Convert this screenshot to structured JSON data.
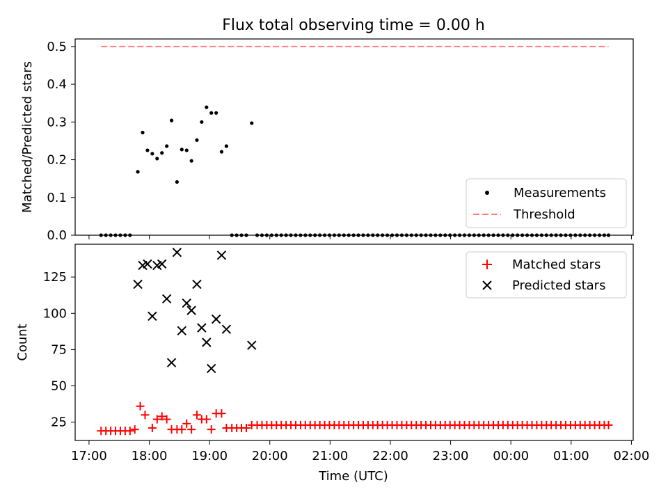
{
  "chart_data": [
    {
      "type": "scatter",
      "title": "Flux total observing time = 0.00 h",
      "xlabel": "",
      "ylabel": "Matched/Predicted stars",
      "x_unit": "hours since 17:00 UTC",
      "xlim": [
        16.77,
        26.03
      ],
      "ylim": [
        0,
        0.52
      ],
      "yticks": [
        "0.0",
        "0.1",
        "0.2",
        "0.3",
        "0.4",
        "0.5"
      ],
      "ytick_values": [
        0,
        0.1,
        0.2,
        0.3,
        0.4,
        0.5
      ],
      "legend_position": "lower right",
      "series": [
        {
          "name": "Measurements",
          "marker": "dot",
          "color": "#000000",
          "points": [
            [
              17.2,
              0
            ],
            [
              17.28,
              0
            ],
            [
              17.36,
              0
            ],
            [
              17.44,
              0
            ],
            [
              17.52,
              0
            ],
            [
              17.6,
              0
            ],
            [
              17.68,
              0
            ],
            [
              17.81,
              0.168
            ],
            [
              17.89,
              0.272
            ],
            [
              17.97,
              0.225
            ],
            [
              18.05,
              0.216
            ],
            [
              18.13,
              0.203
            ],
            [
              18.21,
              0.218
            ],
            [
              18.29,
              0.236
            ],
            [
              18.37,
              0.304
            ],
            [
              18.46,
              0.141
            ],
            [
              18.54,
              0.227
            ],
            [
              18.62,
              0.225
            ],
            [
              18.7,
              0.197
            ],
            [
              18.79,
              0.252
            ],
            [
              18.87,
              0.3
            ],
            [
              18.95,
              0.339
            ],
            [
              19.03,
              0.324
            ],
            [
              19.11,
              0.324
            ],
            [
              19.2,
              0.221
            ],
            [
              19.28,
              0.236
            ],
            [
              19.7,
              0.297
            ],
            [
              19.37,
              0
            ],
            [
              19.45,
              0
            ],
            [
              19.53,
              0
            ],
            [
              19.61,
              0
            ],
            [
              19.79,
              0
            ],
            [
              19.87,
              0
            ],
            [
              19.95,
              0
            ],
            [
              20.03,
              0
            ],
            [
              20.11,
              0
            ],
            [
              20.19,
              0
            ],
            [
              20.27,
              0
            ],
            [
              20.35,
              0
            ],
            [
              20.43,
              0
            ],
            [
              20.51,
              0
            ],
            [
              20.59,
              0
            ],
            [
              20.67,
              0
            ],
            [
              20.75,
              0
            ],
            [
              20.83,
              0
            ],
            [
              20.91,
              0
            ],
            [
              20.99,
              0
            ],
            [
              21.07,
              0
            ],
            [
              21.15,
              0
            ],
            [
              21.23,
              0
            ],
            [
              21.31,
              0
            ],
            [
              21.39,
              0
            ],
            [
              21.47,
              0
            ],
            [
              21.55,
              0
            ],
            [
              21.63,
              0
            ],
            [
              21.71,
              0
            ],
            [
              21.79,
              0
            ],
            [
              21.87,
              0
            ],
            [
              21.95,
              0
            ],
            [
              22.03,
              0
            ],
            [
              22.11,
              0
            ],
            [
              22.19,
              0
            ],
            [
              22.27,
              0
            ],
            [
              22.35,
              0
            ],
            [
              22.43,
              0
            ],
            [
              22.51,
              0
            ],
            [
              22.59,
              0
            ],
            [
              22.67,
              0
            ],
            [
              22.75,
              0
            ],
            [
              22.83,
              0
            ],
            [
              22.91,
              0
            ],
            [
              22.99,
              0
            ],
            [
              23.07,
              0
            ],
            [
              23.15,
              0
            ],
            [
              23.23,
              0
            ],
            [
              23.31,
              0
            ],
            [
              23.39,
              0
            ],
            [
              23.47,
              0
            ],
            [
              23.55,
              0
            ],
            [
              23.63,
              0
            ],
            [
              23.71,
              0
            ],
            [
              23.79,
              0
            ],
            [
              23.87,
              0
            ],
            [
              23.95,
              0
            ],
            [
              24.03,
              0
            ],
            [
              24.11,
              0
            ],
            [
              24.19,
              0
            ],
            [
              24.27,
              0
            ],
            [
              24.35,
              0
            ],
            [
              24.43,
              0
            ],
            [
              24.51,
              0
            ],
            [
              24.59,
              0
            ],
            [
              24.67,
              0
            ],
            [
              24.75,
              0
            ],
            [
              24.83,
              0
            ],
            [
              24.91,
              0
            ],
            [
              24.99,
              0
            ],
            [
              25.07,
              0
            ],
            [
              25.15,
              0
            ],
            [
              25.23,
              0
            ],
            [
              25.31,
              0
            ],
            [
              25.39,
              0
            ],
            [
              25.47,
              0
            ],
            [
              25.55,
              0
            ],
            [
              25.62,
              0
            ]
          ]
        },
        {
          "name": "Threshold",
          "marker": "dashed-line",
          "color": "#ff7f7f",
          "x_range": [
            17.2,
            25.62
          ],
          "y": 0.5
        }
      ]
    },
    {
      "type": "scatter",
      "xlabel": "Time (UTC)",
      "ylabel": "Count",
      "x_unit": "hours since 17:00 UTC",
      "xlim": [
        16.77,
        26.03
      ],
      "ylim": [
        12.4,
        147.6
      ],
      "xticks": [
        "17:00",
        "18:00",
        "19:00",
        "20:00",
        "21:00",
        "22:00",
        "23:00",
        "00:00",
        "01:00",
        "02:00"
      ],
      "xtick_values": [
        17,
        18,
        19,
        20,
        21,
        22,
        23,
        24,
        25,
        26
      ],
      "yticks": [
        "25",
        "50",
        "75",
        "100",
        "125"
      ],
      "ytick_values": [
        25,
        50,
        75,
        100,
        125
      ],
      "legend_position": "upper right",
      "series": [
        {
          "name": "Matched stars",
          "marker": "plus",
          "color": "#ff0000",
          "points": [
            [
              17.2,
              19
            ],
            [
              17.28,
              19
            ],
            [
              17.36,
              19
            ],
            [
              17.44,
              19
            ],
            [
              17.52,
              19
            ],
            [
              17.6,
              19
            ],
            [
              17.68,
              19
            ],
            [
              17.76,
              20
            ],
            [
              17.85,
              36
            ],
            [
              17.93,
              30
            ],
            [
              18.05,
              21
            ],
            [
              18.13,
              27
            ],
            [
              18.21,
              29
            ],
            [
              18.29,
              27
            ],
            [
              18.37,
              20
            ],
            [
              18.46,
              20
            ],
            [
              18.54,
              20
            ],
            [
              18.62,
              24
            ],
            [
              18.7,
              20
            ],
            [
              18.79,
              30
            ],
            [
              18.87,
              27
            ],
            [
              18.95,
              27
            ],
            [
              19.03,
              20
            ],
            [
              19.11,
              31
            ],
            [
              19.2,
              31
            ],
            [
              19.28,
              21
            ],
            [
              19.37,
              21
            ],
            [
              19.45,
              21
            ],
            [
              19.53,
              21
            ],
            [
              19.61,
              21
            ],
            [
              19.7,
              23
            ],
            [
              19.79,
              23
            ],
            [
              19.87,
              23
            ],
            [
              19.95,
              23
            ],
            [
              20.03,
              23
            ],
            [
              20.11,
              23
            ],
            [
              20.19,
              23
            ],
            [
              20.27,
              23
            ],
            [
              20.35,
              23
            ],
            [
              20.43,
              23
            ],
            [
              20.51,
              23
            ],
            [
              20.59,
              23
            ],
            [
              20.67,
              23
            ],
            [
              20.75,
              23
            ],
            [
              20.83,
              23
            ],
            [
              20.91,
              23
            ],
            [
              20.99,
              23
            ],
            [
              21.07,
              23
            ],
            [
              21.15,
              23
            ],
            [
              21.23,
              23
            ],
            [
              21.31,
              23
            ],
            [
              21.39,
              23
            ],
            [
              21.47,
              23
            ],
            [
              21.55,
              23
            ],
            [
              21.63,
              23
            ],
            [
              21.71,
              23
            ],
            [
              21.79,
              23
            ],
            [
              21.87,
              23
            ],
            [
              21.95,
              23
            ],
            [
              22.03,
              23
            ],
            [
              22.11,
              23
            ],
            [
              22.19,
              23
            ],
            [
              22.27,
              23
            ],
            [
              22.35,
              23
            ],
            [
              22.43,
              23
            ],
            [
              22.51,
              23
            ],
            [
              22.59,
              23
            ],
            [
              22.67,
              23
            ],
            [
              22.75,
              23
            ],
            [
              22.83,
              23
            ],
            [
              22.91,
              23
            ],
            [
              22.99,
              23
            ],
            [
              23.07,
              23
            ],
            [
              23.15,
              23
            ],
            [
              23.23,
              23
            ],
            [
              23.31,
              23
            ],
            [
              23.39,
              23
            ],
            [
              23.47,
              23
            ],
            [
              23.55,
              23
            ],
            [
              23.63,
              23
            ],
            [
              23.71,
              23
            ],
            [
              23.79,
              23
            ],
            [
              23.87,
              23
            ],
            [
              23.95,
              23
            ],
            [
              24.03,
              23
            ],
            [
              24.11,
              23
            ],
            [
              24.19,
              23
            ],
            [
              24.27,
              23
            ],
            [
              24.35,
              23
            ],
            [
              24.43,
              23
            ],
            [
              24.51,
              23
            ],
            [
              24.59,
              23
            ],
            [
              24.67,
              23
            ],
            [
              24.75,
              23
            ],
            [
              24.83,
              23
            ],
            [
              24.91,
              23
            ],
            [
              24.99,
              23
            ],
            [
              25.07,
              23
            ],
            [
              25.15,
              23
            ],
            [
              25.23,
              23
            ],
            [
              25.31,
              23
            ],
            [
              25.39,
              23
            ],
            [
              25.47,
              23
            ],
            [
              25.55,
              23
            ],
            [
              25.62,
              23
            ]
          ]
        },
        {
          "name": "Predicted stars",
          "marker": "x",
          "color": "#000000",
          "points": [
            [
              17.81,
              120
            ],
            [
              17.89,
              133
            ],
            [
              17.97,
              134
            ],
            [
              18.05,
              98
            ],
            [
              18.13,
              133
            ],
            [
              18.21,
              134
            ],
            [
              18.29,
              110
            ],
            [
              18.37,
              66
            ],
            [
              18.46,
              142
            ],
            [
              18.54,
              88
            ],
            [
              18.62,
              107
            ],
            [
              18.7,
              102
            ],
            [
              18.79,
              120
            ],
            [
              18.87,
              90
            ],
            [
              18.95,
              80
            ],
            [
              19.03,
              62
            ],
            [
              19.11,
              96
            ],
            [
              19.2,
              140
            ],
            [
              19.28,
              89
            ],
            [
              19.7,
              78
            ]
          ]
        }
      ]
    }
  ]
}
